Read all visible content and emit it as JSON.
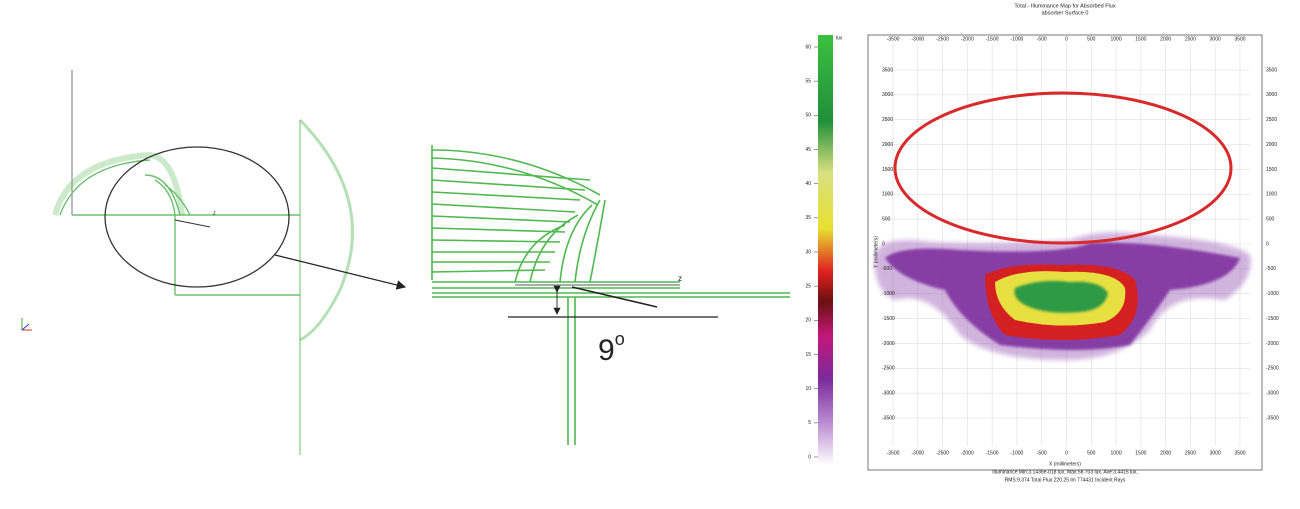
{
  "diagram": {
    "overview_label": "z",
    "zoom_label": "z",
    "angle_label": "9",
    "angle_label_sup": "o"
  },
  "illuminance_map": {
    "title": "Total - Illuminance Map for Absorbed Flux",
    "subtitle": "absorber Surface 0",
    "colorbar_unit": "lux",
    "colorbar_ticks": [
      0,
      5,
      10,
      15,
      20,
      25,
      30,
      35,
      40,
      45,
      50,
      55,
      60
    ],
    "x_ticks": [
      -3500,
      -3000,
      -2500,
      -2000,
      -1500,
      -1000,
      -500,
      0,
      500,
      1000,
      1500,
      2000,
      2500,
      3000,
      3500
    ],
    "y_ticks": [
      3500,
      3000,
      2500,
      2000,
      1500,
      1000,
      500,
      0,
      -500,
      -1000,
      -1500,
      -2000,
      -2500,
      -3000,
      -3500
    ],
    "x_axis_label": "X (millimeters)",
    "y_axis_label": "Y (millimeters)",
    "footer": [
      "Illuminance Min:3.1436e-018 lux, Max:58.703 lux, Ave:3.4415 lux,",
      "RMS:9.374  Total Flux:220.25 lm  774431 Incident Rays"
    ]
  }
}
